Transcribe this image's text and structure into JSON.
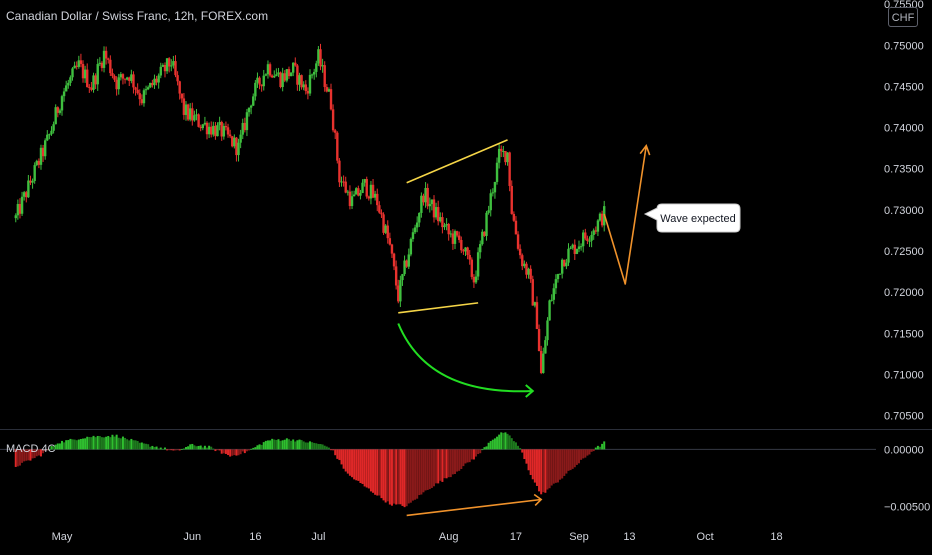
{
  "header": {
    "title": "Canadian Dollar / Swiss Franc, 12h, FOREX.com",
    "currency_badge": "CHF"
  },
  "macd": {
    "label": "MACD 4C",
    "axis_ticks": [
      {
        "value": 0.0,
        "label": "0.00000"
      },
      {
        "value": -0.005,
        "label": "−0.00500"
      }
    ]
  },
  "annotation": {
    "callout": "Wave expected"
  },
  "colors": {
    "background": "#000000",
    "bull": "#26a69a",
    "bull_candle": "#3fbf3f",
    "bear_candle": "#e8322e",
    "wedge": "#f5d547",
    "arc": "#22dd22",
    "projection": "#f0922b",
    "macd_up": "#2fbf2f",
    "macd_down": "#e02828",
    "axis_text": "#d1d4dc"
  },
  "chart_data": [
    {
      "type": "candlestick",
      "title": "Canadian Dollar / Swiss Franc, 12h, FOREX.com",
      "x_ticks": [
        "May",
        "Jun",
        "16",
        "Jul",
        "Aug",
        "17",
        "Sep",
        "13",
        "Oct",
        "18"
      ],
      "y_ticks": [
        "0.70500",
        "0.71000",
        "0.71500",
        "0.72000",
        "0.72500",
        "0.73000",
        "0.73500",
        "0.74000",
        "0.74500",
        "0.75000",
        "0.75500"
      ],
      "ylim": [
        0.7035,
        0.7555
      ],
      "y_range_visible": [
        0.7045,
        0.7555
      ],
      "close_path": [
        {
          "x": "Apr 20",
          "y": 0.729
        },
        {
          "x": "Apr 24",
          "y": 0.734
        },
        {
          "x": "Apr 28",
          "y": 0.739
        },
        {
          "x": "May 1",
          "y": 0.744
        },
        {
          "x": "May 5",
          "y": 0.7475
        },
        {
          "x": "May 8",
          "y": 0.745
        },
        {
          "x": "May 11",
          "y": 0.749
        },
        {
          "x": "May 14",
          "y": 0.7455
        },
        {
          "x": "May 17",
          "y": 0.7465
        },
        {
          "x": "May 20",
          "y": 0.7435
        },
        {
          "x": "May 23",
          "y": 0.7455
        },
        {
          "x": "May 27",
          "y": 0.748
        },
        {
          "x": "May 30",
          "y": 0.742
        },
        {
          "x": "Jun 3",
          "y": 0.7405
        },
        {
          "x": "Jun 8",
          "y": 0.7395
        },
        {
          "x": "Jun 12",
          "y": 0.7375
        },
        {
          "x": "Jun 15",
          "y": 0.7435
        },
        {
          "x": "Jun 19",
          "y": 0.7475
        },
        {
          "x": "Jun 22",
          "y": 0.746
        },
        {
          "x": "Jun 25",
          "y": 0.747
        },
        {
          "x": "Jun 28",
          "y": 0.7445
        },
        {
          "x": "Jul 1",
          "y": 0.7485
        },
        {
          "x": "Jul 4",
          "y": 0.743
        },
        {
          "x": "Jul 6",
          "y": 0.734
        },
        {
          "x": "Jul 9",
          "y": 0.731
        },
        {
          "x": "Jul 12",
          "y": 0.733
        },
        {
          "x": "Jul 15",
          "y": 0.731
        },
        {
          "x": "Jul 18",
          "y": 0.7255
        },
        {
          "x": "Jul 20",
          "y": 0.7195
        },
        {
          "x": "Jul 23",
          "y": 0.726
        },
        {
          "x": "Jul 26",
          "y": 0.732
        },
        {
          "x": "Jul 29",
          "y": 0.7295
        },
        {
          "x": "Aug 1",
          "y": 0.727
        },
        {
          "x": "Aug 4",
          "y": 0.726
        },
        {
          "x": "Aug 7",
          "y": 0.7215
        },
        {
          "x": "Aug 10",
          "y": 0.729
        },
        {
          "x": "Aug 13",
          "y": 0.7365
        },
        {
          "x": "Aug 15",
          "y": 0.737
        },
        {
          "x": "Aug 16",
          "y": 0.73
        },
        {
          "x": "Aug 18",
          "y": 0.7245
        },
        {
          "x": "Aug 20",
          "y": 0.722
        },
        {
          "x": "Aug 22",
          "y": 0.7165
        },
        {
          "x": "Aug 23",
          "y": 0.71
        },
        {
          "x": "Aug 25",
          "y": 0.7185
        },
        {
          "x": "Aug 28",
          "y": 0.724
        },
        {
          "x": "Aug 31",
          "y": 0.7255
        },
        {
          "x": "Sep 3",
          "y": 0.727
        },
        {
          "x": "Sep 5",
          "y": 0.728
        },
        {
          "x": "Sep 7",
          "y": 0.7295
        }
      ],
      "drawings": {
        "wedge_upper": [
          {
            "x": "Jul 22",
            "y": 0.7333
          },
          {
            "x": "Aug 15",
            "y": 0.7385
          }
        ],
        "wedge_lower": [
          {
            "x": "Jul 20",
            "y": 0.7175
          },
          {
            "x": "Aug 8",
            "y": 0.7187
          }
        ],
        "arc": [
          {
            "x": "Jul 20",
            "y": 0.7162
          },
          {
            "x": "Aug 21",
            "y": 0.708
          }
        ],
        "projection": [
          {
            "x": "Sep 7",
            "y": 0.7295
          },
          {
            "x": "Sep 12",
            "y": 0.721
          },
          {
            "x": "Sep 17",
            "y": 0.7378
          }
        ]
      }
    },
    {
      "type": "bar",
      "title": "MACD 4C",
      "ylim": [
        -0.0062,
        0.0017
      ],
      "y_ticks": [
        "0.00000",
        "−0.00500"
      ],
      "histogram_path": [
        {
          "x": "Apr 20",
          "y": -0.0015
        },
        {
          "x": "Apr 26",
          "y": -0.0005
        },
        {
          "x": "Apr 30",
          "y": 0.0006
        },
        {
          "x": "May 7",
          "y": 0.0011
        },
        {
          "x": "May 14",
          "y": 0.0012
        },
        {
          "x": "May 20",
          "y": 0.0005
        },
        {
          "x": "May 25",
          "y": 0.0001
        },
        {
          "x": "May 28",
          "y": -0.0002
        },
        {
          "x": "Jun 1",
          "y": 0.0004
        },
        {
          "x": "Jun 5",
          "y": 0.0002
        },
        {
          "x": "Jun 10",
          "y": -0.0006
        },
        {
          "x": "Jun 14",
          "y": -0.0002
        },
        {
          "x": "Jun 19",
          "y": 0.0008
        },
        {
          "x": "Jun 24",
          "y": 0.0009
        },
        {
          "x": "Jul 1",
          "y": 0.0005
        },
        {
          "x": "Jul 4",
          "y": 0.0001
        },
        {
          "x": "Jul 8",
          "y": -0.0022
        },
        {
          "x": "Jul 13",
          "y": -0.0035
        },
        {
          "x": "Jul 18",
          "y": -0.0048
        },
        {
          "x": "Jul 22",
          "y": -0.005
        },
        {
          "x": "Jul 27",
          "y": -0.0035
        },
        {
          "x": "Aug 2",
          "y": -0.0022
        },
        {
          "x": "Aug 8",
          "y": -0.0005
        },
        {
          "x": "Aug 11",
          "y": 0.0008
        },
        {
          "x": "Aug 14",
          "y": 0.0015
        },
        {
          "x": "Aug 16",
          "y": 0.001
        },
        {
          "x": "Aug 18",
          "y": 0.0001
        },
        {
          "x": "Aug 20",
          "y": -0.0018
        },
        {
          "x": "Aug 23",
          "y": -0.004
        },
        {
          "x": "Aug 27",
          "y": -0.0028
        },
        {
          "x": "Sep 1",
          "y": -0.0012
        },
        {
          "x": "Sep 4",
          "y": -0.0002
        },
        {
          "x": "Sep 7",
          "y": 0.0006
        }
      ],
      "annotation_line": [
        {
          "x": "Jul 22",
          "y": -0.0058
        },
        {
          "x": "Aug 23",
          "y": -0.0044
        }
      ]
    }
  ]
}
